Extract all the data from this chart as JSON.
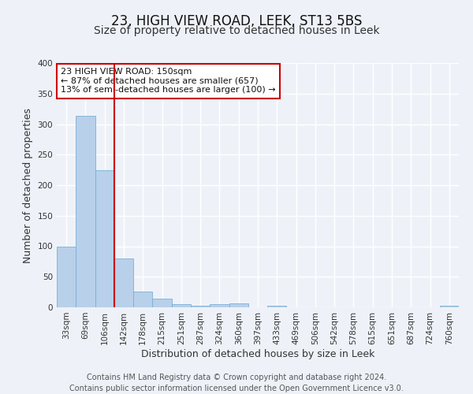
{
  "title": "23, HIGH VIEW ROAD, LEEK, ST13 5BS",
  "subtitle": "Size of property relative to detached houses in Leek",
  "xlabel": "Distribution of detached houses by size in Leek",
  "ylabel": "Number of detached properties",
  "categories": [
    "33sqm",
    "69sqm",
    "106sqm",
    "142sqm",
    "178sqm",
    "215sqm",
    "251sqm",
    "287sqm",
    "324sqm",
    "360sqm",
    "397sqm",
    "433sqm",
    "469sqm",
    "506sqm",
    "542sqm",
    "578sqm",
    "615sqm",
    "651sqm",
    "687sqm",
    "724sqm",
    "760sqm"
  ],
  "values": [
    99,
    313,
    224,
    80,
    26,
    14,
    5,
    3,
    5,
    6,
    0,
    3,
    0,
    0,
    0,
    0,
    0,
    0,
    0,
    0,
    3
  ],
  "bar_color": "#b8d0ea",
  "bar_edge_color": "#7aafd4",
  "vline_color": "#cc0000",
  "annotation_text": "23 HIGH VIEW ROAD: 150sqm\n← 87% of detached houses are smaller (657)\n13% of semi-detached houses are larger (100) →",
  "annotation_box_facecolor": "#ffffff",
  "annotation_box_edgecolor": "#cc0000",
  "ylim": [
    0,
    400
  ],
  "yticks": [
    0,
    50,
    100,
    150,
    200,
    250,
    300,
    350,
    400
  ],
  "footer_line1": "Contains HM Land Registry data © Crown copyright and database right 2024.",
  "footer_line2": "Contains public sector information licensed under the Open Government Licence v3.0.",
  "background_color": "#eef2f8",
  "plot_background_color": "#eef2f8",
  "grid_color": "#ffffff",
  "title_fontsize": 12,
  "subtitle_fontsize": 10,
  "axis_label_fontsize": 9,
  "tick_fontsize": 7.5,
  "footer_fontsize": 7,
  "vline_index": 3
}
